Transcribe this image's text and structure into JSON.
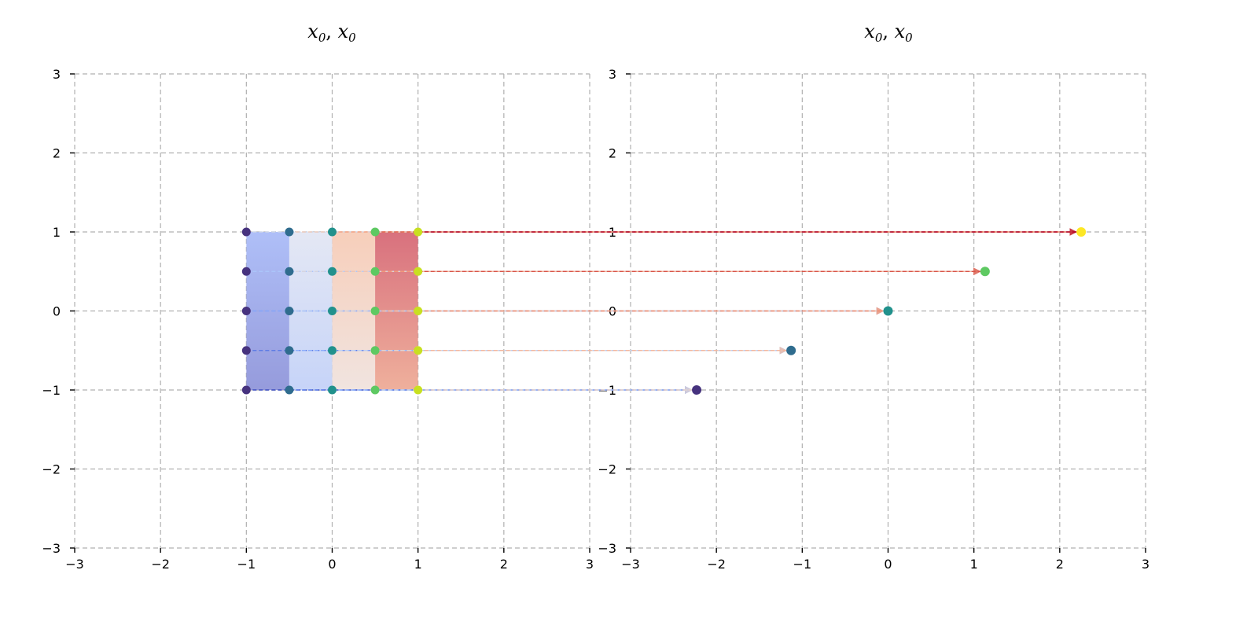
{
  "chart_data": [
    {
      "type": "scatter",
      "panel": "left",
      "title": "x_0, x_0",
      "title_parts": {
        "a": "x",
        "a_sub": "0",
        "sep": ", ",
        "b": "x",
        "b_sub": "0"
      },
      "xlim": [
        -3,
        3
      ],
      "ylim": [
        -3,
        3
      ],
      "x_ticks": [
        -3,
        -2,
        -1,
        0,
        1,
        2,
        3
      ],
      "y_ticks": [
        -3,
        -2,
        -1,
        0,
        1,
        2,
        3
      ],
      "x_tick_labels": [
        "−3",
        "−2",
        "−1",
        "0",
        "1",
        "2",
        "3"
      ],
      "y_tick_labels": [
        "−3",
        "−2",
        "−1",
        "0",
        "1",
        "2",
        "3"
      ],
      "grid": true,
      "strips": [
        {
          "x0": -1.0,
          "x1": -0.5,
          "color_top": "#a6b8f7",
          "color_bottom": "#8a90d8"
        },
        {
          "x0": -0.5,
          "x1": 0.0,
          "color_top": "#e1e5f3",
          "color_bottom": "#c0cff7"
        },
        {
          "x0": 0.0,
          "x1": 0.5,
          "color_top": "#f6c9b3",
          "color_bottom": "#efe1dc"
        },
        {
          "x0": 0.5,
          "x1": 1.0,
          "color_top": "#d4616f",
          "color_bottom": "#eda791"
        }
      ],
      "points": [
        {
          "x": -1.0,
          "y": 1.0,
          "color": "#46327e"
        },
        {
          "x": -0.5,
          "y": 1.0,
          "color": "#2f6c8e"
        },
        {
          "x": 0.0,
          "y": 1.0,
          "color": "#21918c"
        },
        {
          "x": 0.5,
          "y": 1.0,
          "color": "#5ec962"
        },
        {
          "x": 1.0,
          "y": 1.0,
          "color": "#c8e020"
        },
        {
          "x": -1.0,
          "y": 0.5,
          "color": "#46327e"
        },
        {
          "x": -0.5,
          "y": 0.5,
          "color": "#2f6c8e"
        },
        {
          "x": 0.0,
          "y": 0.5,
          "color": "#21918c"
        },
        {
          "x": 0.5,
          "y": 0.5,
          "color": "#5ec962"
        },
        {
          "x": 1.0,
          "y": 0.5,
          "color": "#c8e020"
        },
        {
          "x": -1.0,
          "y": 0.0,
          "color": "#46327e"
        },
        {
          "x": -0.5,
          "y": 0.0,
          "color": "#2f6c8e"
        },
        {
          "x": 0.0,
          "y": 0.0,
          "color": "#21918c"
        },
        {
          "x": 0.5,
          "y": 0.0,
          "color": "#5ec962"
        },
        {
          "x": 1.0,
          "y": 0.0,
          "color": "#c8e020"
        },
        {
          "x": -1.0,
          "y": -0.5,
          "color": "#46327e"
        },
        {
          "x": -0.5,
          "y": -0.5,
          "color": "#2f6c8e"
        },
        {
          "x": 0.0,
          "y": -0.5,
          "color": "#21918c"
        },
        {
          "x": 0.5,
          "y": -0.5,
          "color": "#5ec962"
        },
        {
          "x": 1.0,
          "y": -0.5,
          "color": "#c8e020"
        },
        {
          "x": -1.0,
          "y": -1.0,
          "color": "#46327e"
        },
        {
          "x": -0.5,
          "y": -1.0,
          "color": "#2f6c8e"
        },
        {
          "x": 0.0,
          "y": -1.0,
          "color": "#21918c"
        },
        {
          "x": 0.5,
          "y": -1.0,
          "color": "#5ec962"
        },
        {
          "x": 1.0,
          "y": -1.0,
          "color": "#c8e020"
        }
      ]
    },
    {
      "type": "scatter",
      "panel": "right",
      "title": "x_0, x_0",
      "title_parts": {
        "a": "x",
        "a_sub": "0",
        "sep": ", ",
        "b": "x",
        "b_sub": "0"
      },
      "xlim": [
        -3,
        3
      ],
      "ylim": [
        -3,
        3
      ],
      "x_ticks": [
        -3,
        -2,
        -1,
        0,
        1,
        2,
        3
      ],
      "y_ticks": [
        -3,
        -2,
        -1,
        0,
        1,
        2,
        3
      ],
      "x_tick_labels": [
        "−3",
        "−2",
        "−1",
        "0",
        "1",
        "2",
        "3"
      ],
      "y_tick_labels": [
        "−3",
        "−2",
        "−1",
        "0",
        "1",
        "2",
        "3"
      ],
      "grid": true,
      "points": [
        {
          "x": -2.23,
          "y": -1.0,
          "color": "#46327e"
        },
        {
          "x": -1.13,
          "y": -0.5,
          "color": "#2f6c8e"
        },
        {
          "x": 0.0,
          "y": 0.0,
          "color": "#21918c"
        },
        {
          "x": 1.13,
          "y": 0.5,
          "color": "#5ec962"
        },
        {
          "x": 2.25,
          "y": 1.0,
          "color": "#fde725"
        }
      ]
    }
  ],
  "mapping": {
    "arrow_color_scale": [
      "#3b4cc0",
      "#6788ee",
      "#9abbff",
      "#c9d7f0",
      "#edd1c2",
      "#f7a889",
      "#e26952",
      "#b40426"
    ],
    "targets": [
      {
        "x": -2.23,
        "y": -1.0
      },
      {
        "x": -1.13,
        "y": -0.5
      },
      {
        "x": 0.0,
        "y": 0.0
      },
      {
        "x": 1.13,
        "y": 0.5
      },
      {
        "x": 2.25,
        "y": 1.0
      }
    ]
  }
}
